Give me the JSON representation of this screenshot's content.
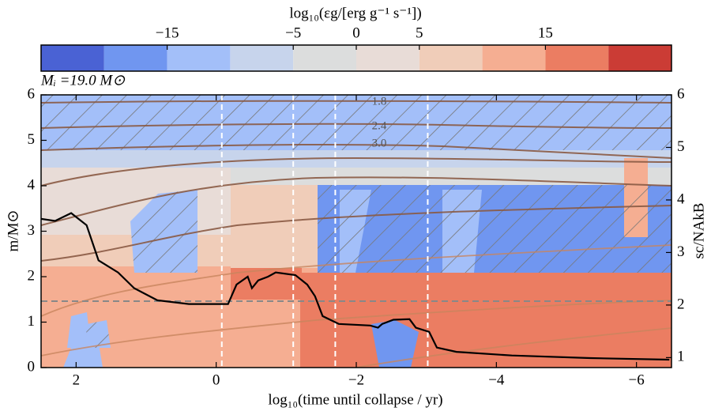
{
  "chart_data": {
    "type": "line",
    "annotation": "Mᵢ =19.0 M⊙",
    "xlabel": "log₁₀(time until collapse / yr)",
    "ylabel": "m/M⊙",
    "y2label": "sc/NAkB",
    "xlim": [
      2.5,
      -6.5
    ],
    "xticks": [
      {
        "value": 2,
        "label": "2"
      },
      {
        "value": 0,
        "label": "0"
      },
      {
        "value": -2,
        "label": "−2"
      },
      {
        "value": -4,
        "label": "−4"
      },
      {
        "value": -6,
        "label": "−6"
      }
    ],
    "ylim": [
      0,
      6
    ],
    "yticks": [
      0,
      1,
      2,
      3,
      4,
      5,
      6
    ],
    "y2lim": [
      0.81,
      6
    ],
    "y2ticks": [
      1,
      2,
      3,
      4,
      5,
      6
    ],
    "x": [
      2.5,
      2.3,
      2.07,
      1.85,
      1.68,
      1.4,
      1.17,
      0.84,
      0.39,
      -0.17,
      -0.29,
      -0.45,
      -0.51,
      -0.6,
      -0.74,
      -0.85,
      -1.13,
      -1.3,
      -1.41,
      -1.52,
      -1.75,
      -2.2,
      -2.31,
      -2.37,
      -2.53,
      -2.76,
      -2.85,
      -3.04,
      -3.15,
      -3.43,
      -4.22,
      -5.34,
      -6.47
    ],
    "series": [
      {
        "color": "#000000",
        "axis": "y2",
        "values": [
          3.64,
          3.6,
          3.75,
          3.52,
          2.85,
          2.62,
          2.32,
          2.09,
          2.02,
          2.02,
          2.39,
          2.54,
          2.32,
          2.47,
          2.54,
          2.62,
          2.57,
          2.39,
          2.17,
          1.79,
          1.64,
          1.61,
          1.57,
          1.64,
          1.72,
          1.73,
          1.57,
          1.49,
          1.19,
          1.11,
          1.04,
          0.99,
          0.96
        ]
      }
    ],
    "vlines": [
      -0.08,
      -1.1,
      -1.7,
      -3.02
    ],
    "hline": 1.46,
    "contour_labels": [
      "1.8",
      "2.4",
      "3.0"
    ],
    "colorbar": {
      "label": "log₁₀(εg/[erg g⁻¹ s⁻¹])",
      "bounds": [
        -25,
        -20,
        -15,
        -10,
        -5,
        0,
        5,
        10,
        15,
        20,
        25
      ],
      "colors": [
        "#4a62d4",
        "#7096f0",
        "#a3bff9",
        "#c7d4ec",
        "#dcdddd",
        "#e8dcd7",
        "#f0cdb9",
        "#f5ae92",
        "#eb7d62",
        "#cb3c35"
      ],
      "ticks": [
        {
          "value": -15,
          "label": "−15"
        },
        {
          "value": -5,
          "label": "−5"
        },
        0,
        5,
        15
      ]
    }
  }
}
